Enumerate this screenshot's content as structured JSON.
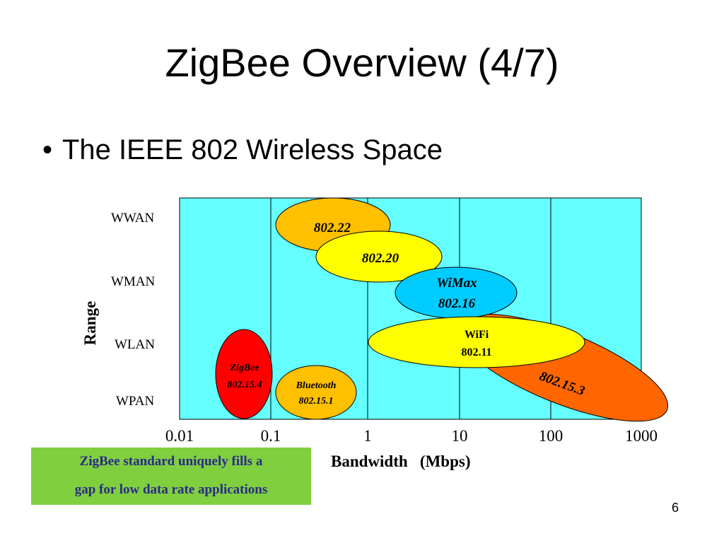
{
  "title": "ZigBee Overview (4/7)",
  "bullet": "The IEEE 802 Wireless Space",
  "range_rows": [
    "WWAN",
    "WMAN",
    "WLAN",
    "WPAN"
  ],
  "y_axis_label": "Range",
  "x_ticks": [
    "0.01",
    "0.1",
    "1",
    "10",
    "100",
    "1000"
  ],
  "x_axis_label": "Bandwidth   (Mbps)",
  "standards": {
    "s80222": "802.22",
    "s80220": "802.20",
    "wimax_name": "WiMax",
    "wimax_std": "802.16",
    "wifi_name": "WiFi",
    "wifi_std": "802.11",
    "s802153": "802.15.3",
    "zigbee_name": "ZigBee",
    "zigbee_std": "802.15.4",
    "bt_name": "Bluetooth",
    "bt_std": "802.15.1"
  },
  "callout": {
    "line1": "ZigBee standard uniquely fills a",
    "line2": "gap for low data rate applications"
  },
  "page_number": "6",
  "colors": {
    "plot_bg": "#66ffff",
    "s80222": "#ffc000",
    "s80220": "#ffff00",
    "wimax": "#00ccff",
    "wifi": "#ffff00",
    "s802153": "#ff6600",
    "zigbee": "#ff0000",
    "bluetooth": "#ffc000",
    "callout_bg": "#7fcf3f",
    "callout_text": "#2a2a8a"
  }
}
